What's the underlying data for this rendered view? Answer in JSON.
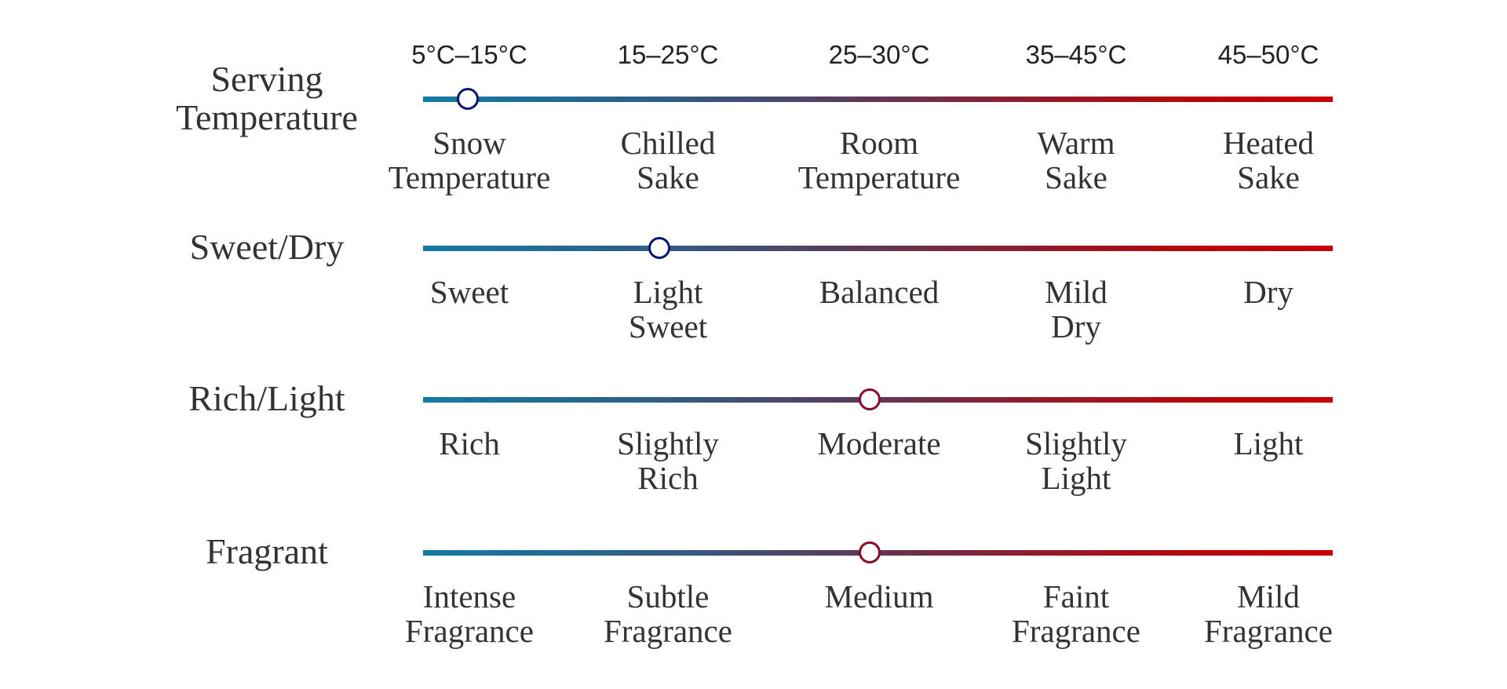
{
  "temperature_ranges": [
    "5°C–15°C",
    "15–25°C",
    "25–30°C",
    "35–45°C",
    "45–50°C"
  ],
  "scales": [
    {
      "title_lines": [
        "Serving",
        "Temperature"
      ],
      "labels": [
        [
          "Snow",
          "Temperature"
        ],
        [
          "Chilled",
          "Sake"
        ],
        [
          "Room",
          "Temperature"
        ],
        [
          "Warm",
          "Sake"
        ],
        [
          "Heated",
          "Sake"
        ]
      ],
      "selected_index": 0,
      "selected_label": "Snow Temperature"
    },
    {
      "title_lines": [
        "Sweet/Dry"
      ],
      "labels": [
        [
          "Sweet"
        ],
        [
          "Light",
          "Sweet"
        ],
        [
          "Balanced"
        ],
        [
          "Mild",
          "Dry"
        ],
        [
          "Dry"
        ]
      ],
      "selected_index": 1,
      "selected_label": "Light Sweet"
    },
    {
      "title_lines": [
        "Rich/Light"
      ],
      "labels": [
        [
          "Rich"
        ],
        [
          "Slightly",
          "Rich"
        ],
        [
          "Moderate"
        ],
        [
          "Slightly",
          "Light"
        ],
        [
          "Light"
        ]
      ],
      "selected_index": 2,
      "selected_label": "Moderate"
    },
    {
      "title_lines": [
        "Fragrant"
      ],
      "labels": [
        [
          "Intense",
          "Fragrance"
        ],
        [
          "Subtle",
          "Fragrance"
        ],
        [
          "Medium"
        ],
        [
          "Faint",
          "Fragrance"
        ],
        [
          "Mild",
          "Fragrance"
        ]
      ],
      "selected_index": 2,
      "selected_label": "Medium"
    }
  ],
  "colors": {
    "gradient_start": "#147aa2",
    "gradient_end": "#c80000",
    "knob_cool": "#0a1670",
    "knob_warm": "#8a0a2a"
  }
}
